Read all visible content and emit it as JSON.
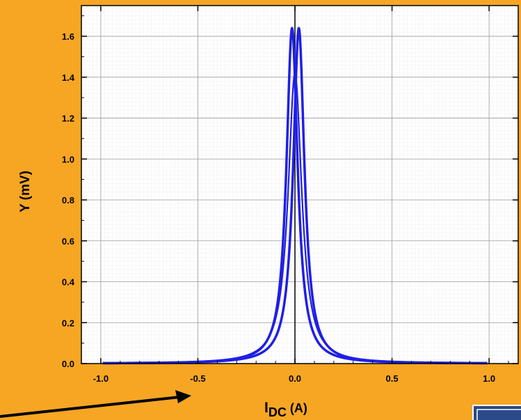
{
  "colors": {
    "background": "#f6a623",
    "plot_background": "#ffffff",
    "series": "#1f1fe6",
    "grid_major": "#9a9a9a",
    "grid_minor": "#e2e2e2",
    "arrow": "#000000",
    "corner_badge": "#2a4a8a"
  },
  "chart_data": {
    "type": "line",
    "xlabel_main": "I",
    "xlabel_sub": "DC",
    "xlabel_unit": " (A)",
    "ylabel": "Y (mV)",
    "xlim": [
      -1.1,
      1.15
    ],
    "ylim": [
      0,
      1.75
    ],
    "x_ticks": [
      -1.0,
      -0.5,
      0.0,
      0.5,
      1.0
    ],
    "x_tick_labels": [
      "-1.0",
      "-0.5",
      "0.0",
      "0.5",
      "1.0"
    ],
    "y_ticks": [
      0.0,
      0.2,
      0.4,
      0.6,
      0.8,
      1.0,
      1.2,
      1.4,
      1.6
    ],
    "y_tick_labels": [
      "0.0",
      "0.2",
      "0.4",
      "0.6",
      "0.8",
      "1.0",
      "1.2",
      "1.4",
      "1.6"
    ],
    "grid": true,
    "zero_line_x": 0.0,
    "series": [
      {
        "peak_x": -0.015,
        "peak_y": 1.64,
        "half_width": 0.07,
        "x_range": [
          -0.99,
          0.99
        ]
      },
      {
        "peak_x": 0.02,
        "peak_y": 1.64,
        "half_width": 0.07,
        "x_range": [
          -0.99,
          0.99
        ]
      },
      {
        "peak_x": 0.0,
        "peak_y": 1.42,
        "half_width": 0.085,
        "x_range": [
          -0.99,
          0.99
        ]
      }
    ],
    "annotation": {
      "type": "arrow",
      "from": [
        -1.1,
        -0.1
      ],
      "to": [
        -0.57,
        -0.02
      ]
    }
  }
}
